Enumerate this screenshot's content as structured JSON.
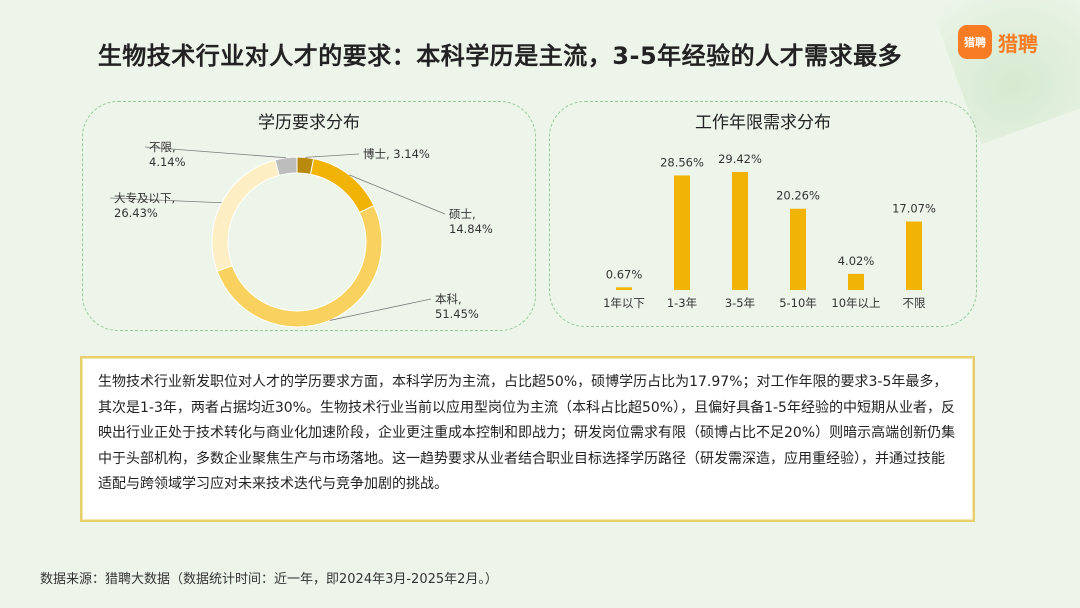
{
  "title": "生物技术行业对人才的要求：本科学历是主流，3-5年经验的人才需求最多",
  "logo": {
    "badge": "猎聘",
    "text": "猎聘"
  },
  "chart_data": [
    {
      "type": "pie",
      "title": "学历要求分布",
      "categories": [
        "博士",
        "硕士",
        "本科",
        "大专及以下",
        "不限"
      ],
      "values": [
        3.14,
        14.84,
        51.45,
        26.43,
        4.14
      ],
      "value_labels": [
        "3.14%",
        "14.84%",
        "51.45%",
        "26.43%",
        "4.14%"
      ],
      "colors": [
        "#b98a10",
        "#f1b305",
        "#f9d15e",
        "#fdeec3",
        "#bdbdbd"
      ]
    },
    {
      "type": "bar",
      "title": "工作年限需求分布",
      "categories": [
        "1年以下",
        "1-3年",
        "3-5年",
        "5-10年",
        "10年以上",
        "不限"
      ],
      "values": [
        0.67,
        28.56,
        29.42,
        20.26,
        4.02,
        17.07
      ],
      "value_labels": [
        "0.67%",
        "28.56%",
        "29.42%",
        "20.26%",
        "4.02%",
        "17.07%"
      ],
      "color": "#f1b305"
    }
  ],
  "summary": "生物技术行业新发职位对人才的学历要求方面，本科学历为主流，占比超50%，硕博学历占比为17.97%；对工作年限的要求3-5年最多，其次是1-3年，两者占据均近30%。生物技术行业当前以应用型岗位为主流（本科占比超50%），且偏好具备1-5年经验的中短期从业者，反映出行业正处于技术转化与商业化加速阶段，企业更注重成本控制和即战力；研发岗位需求有限（硕博占比不足20%）则暗示高端创新仍集中于头部机构，多数企业聚焦生产与市场落地。这一趋势要求从业者结合职业目标选择学历路径（研发需深造，应用重经验），并通过技能适配与跨领域学习应对未来技术迭代与竞争加剧的挑战。",
  "source": "数据来源：猎聘大数据（数据统计时间：近一年，即2024年3月-2025年2月。）"
}
